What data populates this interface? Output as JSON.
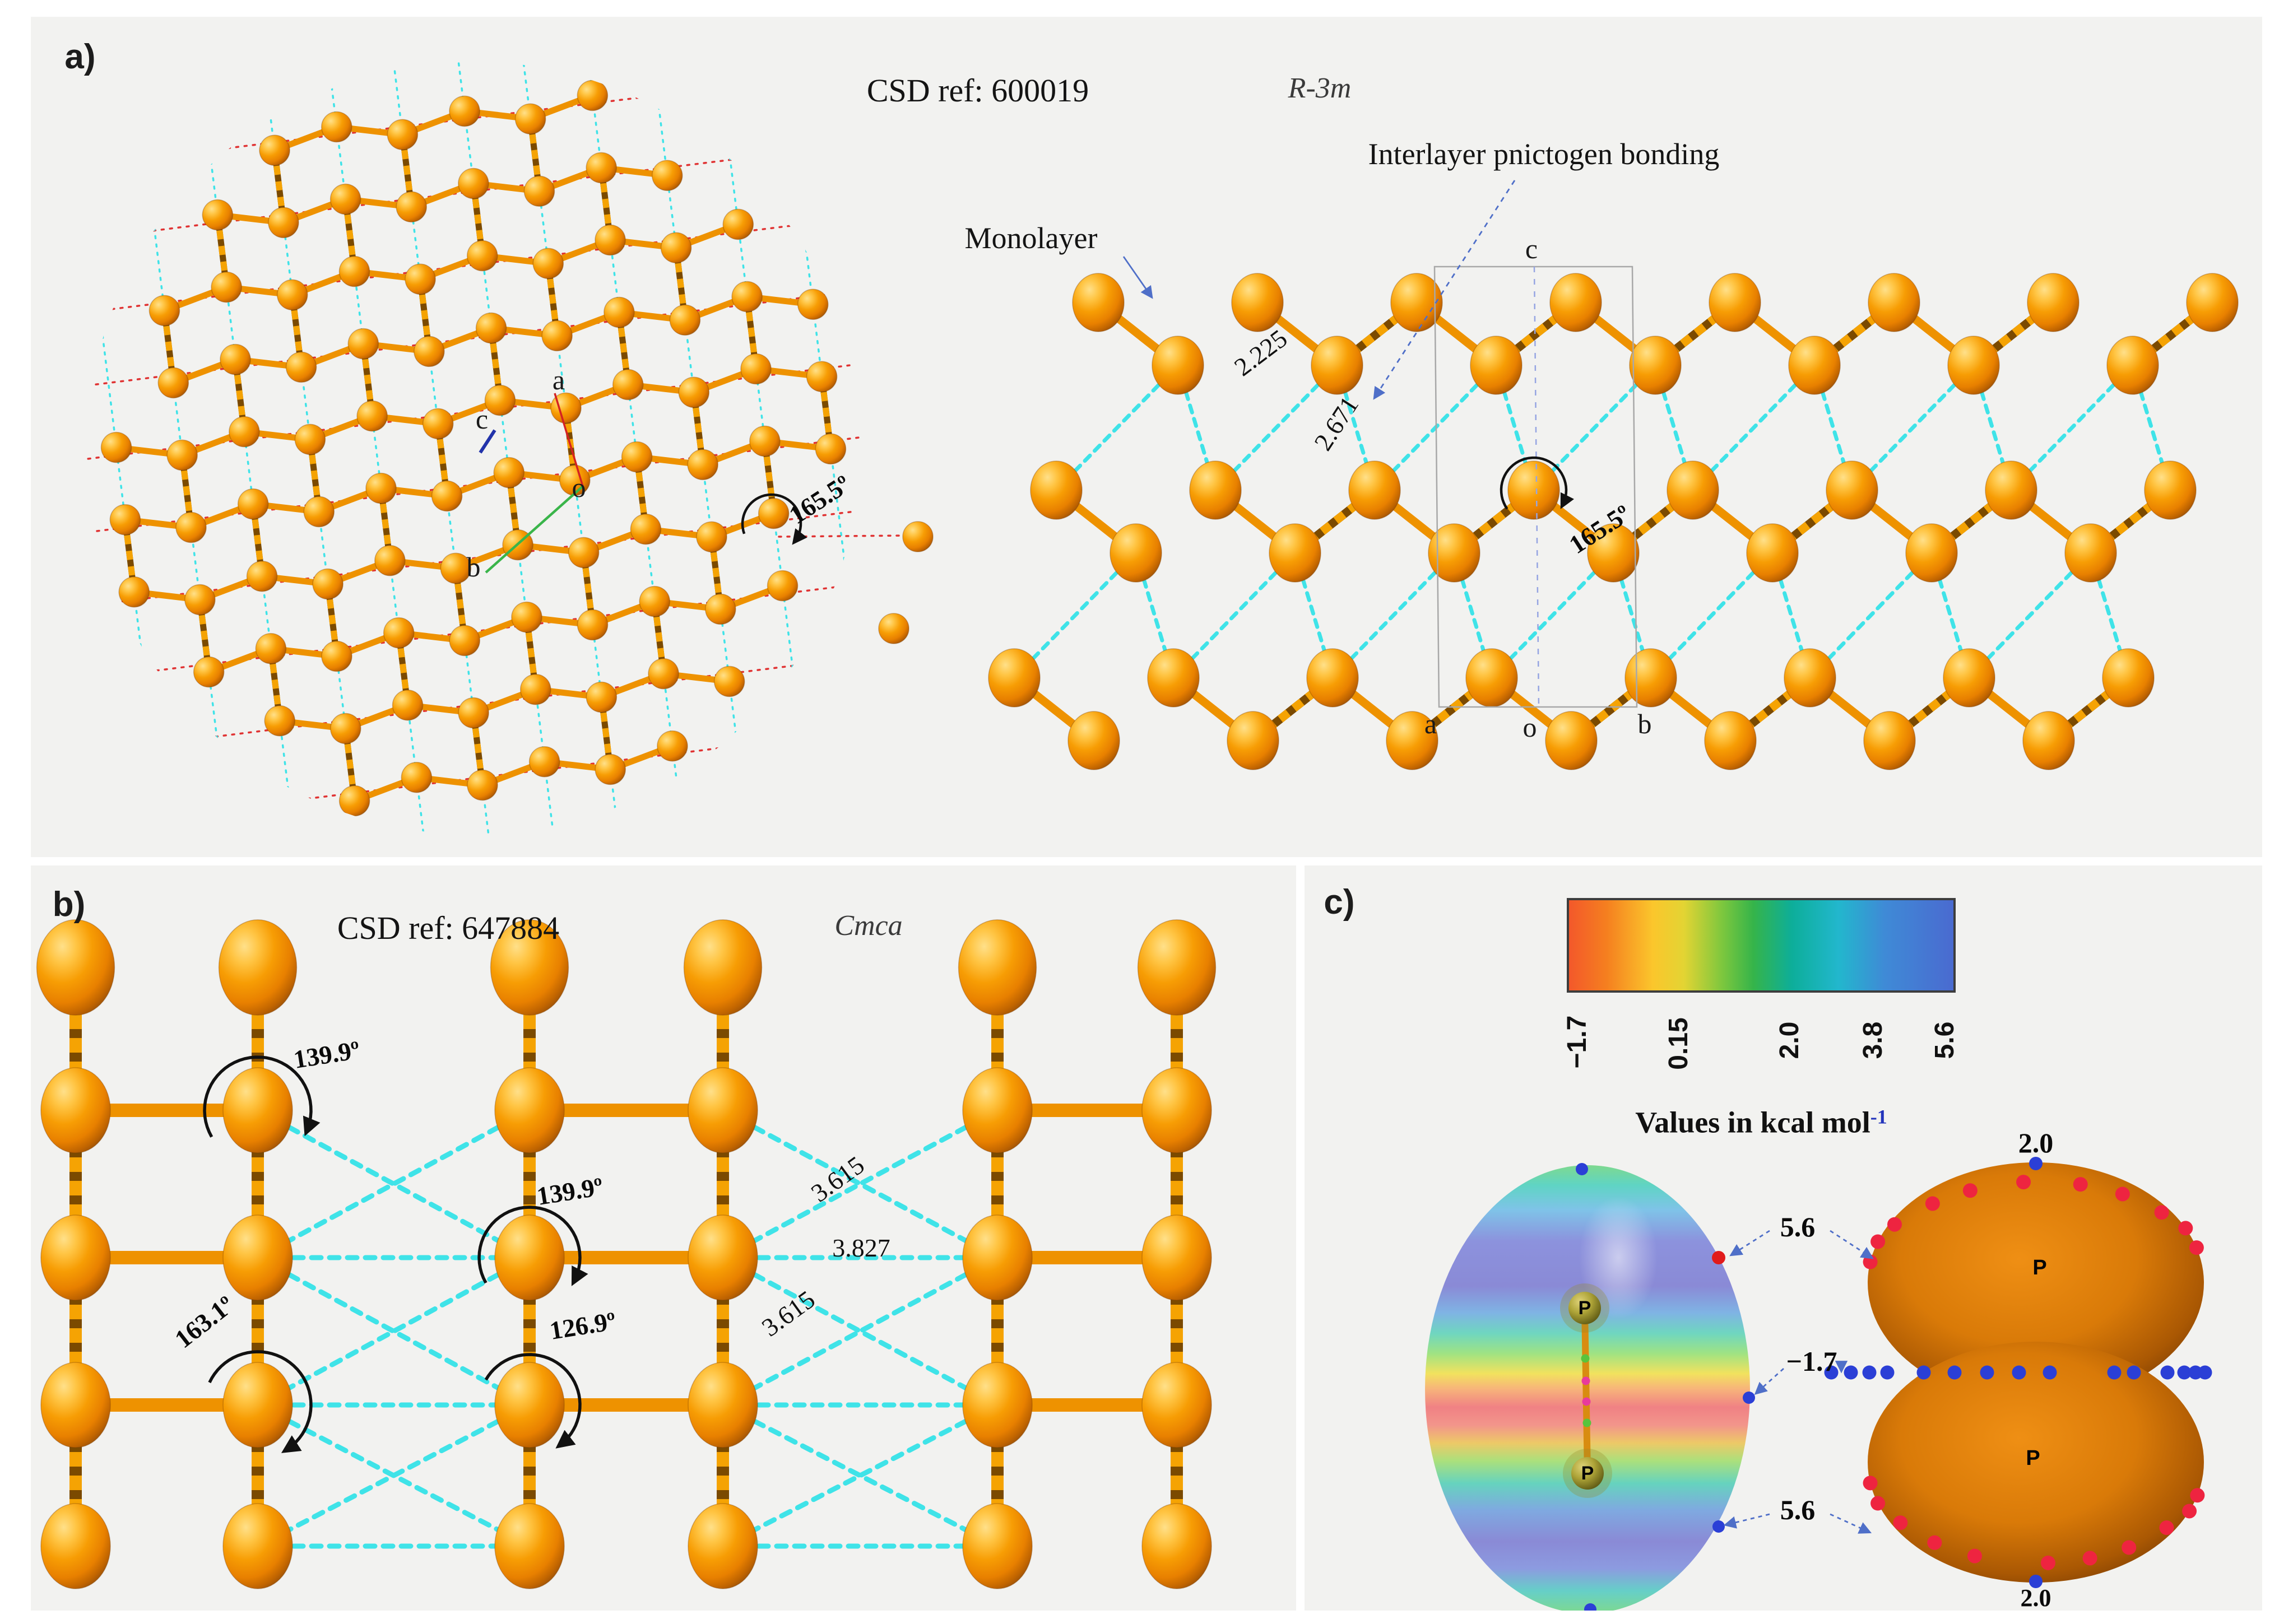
{
  "figure": {
    "panel_a": {
      "label": "a)",
      "csd_ref": "CSD ref: 600019",
      "space_group": "R-3m",
      "monolayer_label": "Monolayer",
      "interlayer_label": "Interlayer pnictogen bonding",
      "bond_length_intralayer": "2.225",
      "bond_length_interlayer": "2.671",
      "bond_angle": "165.5º",
      "axes_view": {
        "a": "a",
        "b": "b",
        "c": "c",
        "o": "o"
      },
      "axes_cell": {
        "a": "a",
        "b": "b",
        "c": "c",
        "o": "o"
      }
    },
    "panel_b": {
      "label": "b)",
      "csd_ref": "CSD ref: 647884",
      "space_group": "Cmca",
      "angles": {
        "alpha": "139.9º",
        "beta": "163.1º",
        "gamma": "126.9º"
      },
      "distances": {
        "d_diag": "3.615",
        "d_horiz": "3.827"
      }
    },
    "panel_c": {
      "label": "c)",
      "colorbar": {
        "ticks": [
          "−1.7",
          "0.15",
          "2.0",
          "3.8",
          "5.6"
        ],
        "caption": "Values in kcal mol",
        "caption_sup": "-1"
      },
      "mep_labels": {
        "vmax": "5.6",
        "vmin": "−1.7",
        "iso": "2.0"
      },
      "atom_label": "P"
    },
    "colors": {
      "atom_orange": "#f79d04",
      "bond_orange": "#ee9200",
      "bond_stripe_dark": "#7b4a00",
      "bond_stripe_light": "#f5a303",
      "cyan_contact": "#3fe3e8",
      "red_dotted": "#e03333",
      "arrow_blue": "#4f6fc8",
      "arc_black": "#111111",
      "colorbar_gradient": [
        "#f3572b",
        "#f57f1f",
        "#fbc62c",
        "#e3d433",
        "#7cc73e",
        "#35b44a",
        "#0dae9a",
        "#22b7cd",
        "#3f8ad6",
        "#4a6ad0"
      ],
      "blob_orange": "#d97a08",
      "dot_blue": "#2b3fd6",
      "dot_red": "#ee2440"
    }
  }
}
